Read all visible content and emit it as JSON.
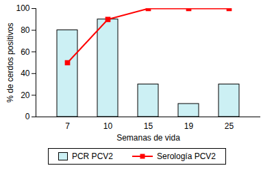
{
  "chart_data": {
    "type": "bar",
    "x_label": "Semanas de vida",
    "y_label": "% de cerdos positivos",
    "categories": [
      "7",
      "10",
      "15",
      "19",
      "25"
    ],
    "series": [
      {
        "name": "PCR PCV2",
        "type": "bar",
        "color": "#ccf0f4",
        "values": [
          80,
          90,
          30,
          12,
          30
        ]
      },
      {
        "name": "Serología PCV2",
        "type": "line",
        "color": "#ff0000",
        "marker": "square",
        "values": [
          50,
          90,
          100,
          100,
          100
        ]
      }
    ],
    "ylim": [
      0,
      100
    ],
    "yticks": [
      0,
      20,
      40,
      60,
      80,
      100
    ],
    "grid": false,
    "legend": "bottom"
  }
}
